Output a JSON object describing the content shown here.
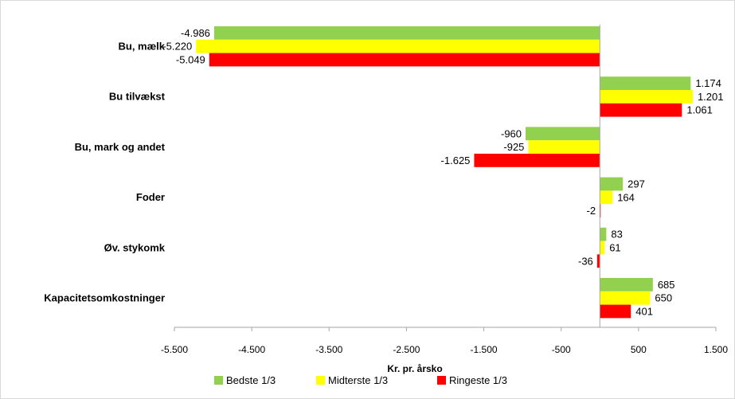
{
  "chart_data": {
    "type": "bar",
    "orientation": "horizontal",
    "categories": [
      "Bu, mælk",
      "Bu tilvækst",
      "Bu, mark og andet",
      "Foder",
      "Øv. stykomk",
      "Kapacitetsomkostninger"
    ],
    "series": [
      {
        "name": "Bedste 1/3",
        "color": "#92d050",
        "values": [
          -4986,
          1174,
          -960,
          297,
          83,
          685
        ],
        "labels": [
          "-4.986",
          "1.174",
          "-960",
          "297",
          "83",
          "685"
        ]
      },
      {
        "name": "Midterste 1/3",
        "color": "#ffff00",
        "values": [
          -5220,
          1201,
          -925,
          164,
          61,
          650
        ],
        "labels": [
          "-5.220",
          "1.201",
          "-925",
          "164",
          "61",
          "650"
        ]
      },
      {
        "name": "Ringeste 1/3",
        "color": "#ff0000",
        "values": [
          -5049,
          1061,
          -1625,
          -2,
          -36,
          401
        ],
        "labels": [
          "-5.049",
          "1.061",
          "-1.625",
          "-2",
          "-36",
          "401"
        ]
      }
    ],
    "xlabel": "Kr. pr. årsko",
    "xlim": [
      -5500,
      1500
    ],
    "xticks": [
      -5500,
      -4500,
      -3500,
      -2500,
      -1500,
      -500,
      500,
      1500
    ],
    "xtick_labels": [
      "-5.500",
      "-4.500",
      "-3.500",
      "-2.500",
      "-1.500",
      "-500",
      "500",
      "1.500"
    ],
    "grid": false,
    "legend_position": "bottom"
  }
}
